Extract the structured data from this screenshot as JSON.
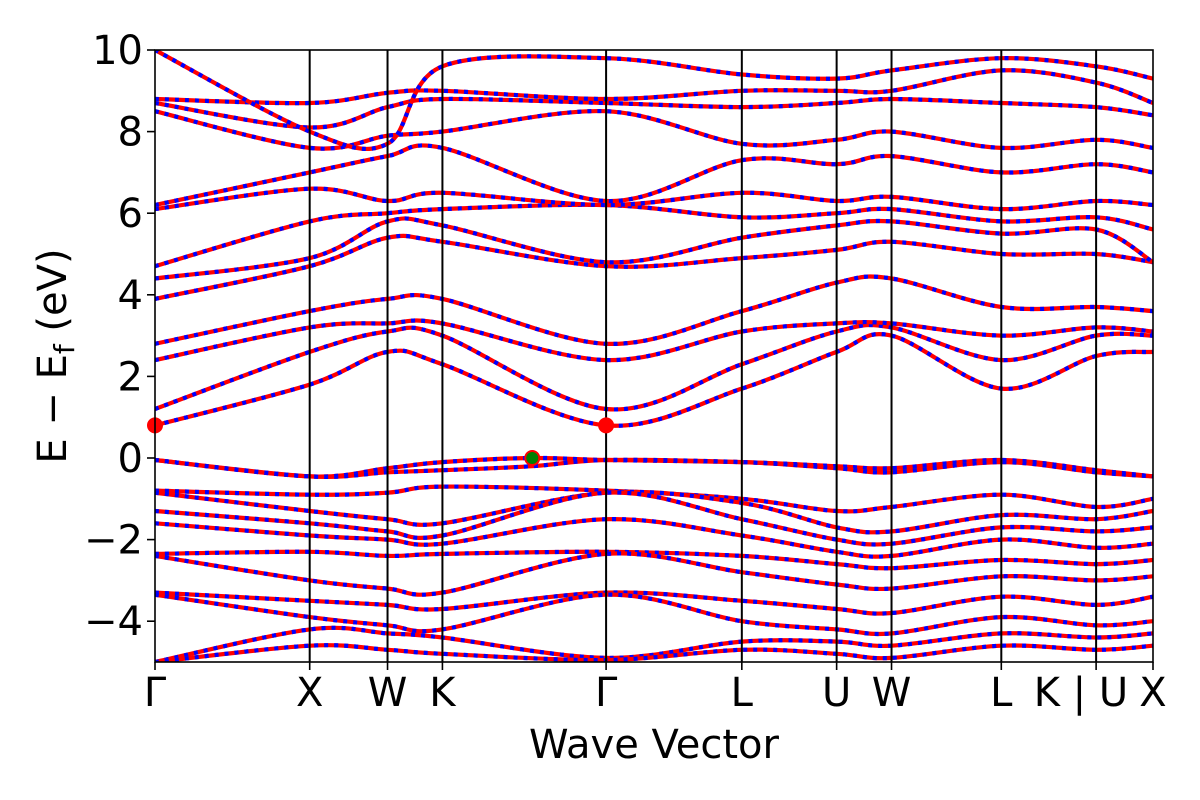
{
  "chart_data": {
    "type": "line",
    "xlabel": "Wave Vector",
    "ylabel": "E − E",
    "ylabel_sub": "f",
    "ylabel_unit": " (eV)",
    "ylim": [
      -5,
      10
    ],
    "y_ticks": [
      -4,
      -2,
      0,
      2,
      4,
      6,
      8,
      10
    ],
    "y_tick_labels": [
      "−4",
      "−2",
      "0",
      "2",
      "4",
      "6",
      "8",
      "10"
    ],
    "kpath_positions": [
      0,
      0.155,
      0.233,
      0.288,
      0.452,
      0.588,
      0.683,
      0.738,
      0.848,
      0.943,
      1.0
    ],
    "kpath_labels": [
      "Γ",
      "X",
      "W",
      "K",
      "Γ",
      "L",
      "U",
      "W",
      "L",
      "K | U",
      "X"
    ],
    "grid": false,
    "legend": "none",
    "colors": {
      "spin_up": "#ff0000",
      "spin_down": "#0000ff",
      "vbm_marker": "#008000",
      "cbm_marker": "#ff0000",
      "kpath_line": "#000000"
    },
    "markers": [
      {
        "name": "VBM",
        "x": 0.378,
        "y": 0.0
      },
      {
        "name": "CBM",
        "x": 0.452,
        "y": 0.8
      },
      {
        "name": "CBM",
        "x": 0.0,
        "y": 0.8
      }
    ],
    "series": [
      {
        "x": [
          0,
          0.155,
          0.233,
          0.288,
          0.378,
          0.452,
          0.588,
          0.683,
          0.738,
          0.848,
          0.943,
          1.0
        ],
        "y": [
          -0.05,
          -0.45,
          -0.25,
          -0.1,
          0.0,
          -0.05,
          -0.1,
          -0.2,
          -0.25,
          -0.05,
          -0.3,
          -0.45
        ]
      },
      {
        "x": [
          0,
          0.155,
          0.233,
          0.288,
          0.378,
          0.452,
          0.588,
          0.683,
          0.738,
          0.848,
          0.943,
          1.0
        ],
        "y": [
          -0.05,
          -0.45,
          -0.35,
          -0.3,
          -0.2,
          -0.05,
          -0.1,
          -0.25,
          -0.35,
          -0.1,
          -0.35,
          -0.45
        ]
      },
      {
        "x": [
          0,
          0.155,
          0.233,
          0.288,
          0.452,
          0.588,
          0.683,
          0.738,
          0.848,
          0.943,
          1.0
        ],
        "y": [
          -0.8,
          -0.9,
          -0.85,
          -0.7,
          -0.8,
          -1.0,
          -1.3,
          -1.2,
          -0.9,
          -1.2,
          -1.0
        ]
      },
      {
        "x": [
          0,
          0.155,
          0.233,
          0.288,
          0.452,
          0.588,
          0.683,
          0.738,
          0.848,
          0.943,
          1.0
        ],
        "y": [
          -0.85,
          -1.3,
          -1.5,
          -1.6,
          -0.85,
          -1.1,
          -1.7,
          -1.8,
          -1.4,
          -1.5,
          -1.3
        ]
      },
      {
        "x": [
          0,
          0.155,
          0.233,
          0.288,
          0.452,
          0.588,
          0.683,
          0.738,
          0.848,
          0.943,
          1.0
        ],
        "y": [
          -1.3,
          -1.6,
          -1.8,
          -1.9,
          -0.85,
          -1.5,
          -2.0,
          -2.1,
          -1.7,
          -1.8,
          -1.7
        ]
      },
      {
        "x": [
          0,
          0.155,
          0.233,
          0.288,
          0.452,
          0.588,
          0.683,
          0.738,
          0.848,
          0.943,
          1.0
        ],
        "y": [
          -1.6,
          -1.9,
          -2.0,
          -2.1,
          -1.5,
          -1.9,
          -2.3,
          -2.4,
          -2.0,
          -2.2,
          -2.1
        ]
      },
      {
        "x": [
          0,
          0.155,
          0.233,
          0.288,
          0.452,
          0.588,
          0.683,
          0.738,
          0.848,
          0.943,
          1.0
        ],
        "y": [
          -2.35,
          -2.3,
          -2.4,
          -2.35,
          -2.3,
          -2.4,
          -2.6,
          -2.7,
          -2.5,
          -2.6,
          -2.5
        ]
      },
      {
        "x": [
          0,
          0.155,
          0.233,
          0.288,
          0.452,
          0.588,
          0.683,
          0.738,
          0.848,
          0.943,
          1.0
        ],
        "y": [
          -2.4,
          -3.0,
          -3.2,
          -3.3,
          -2.35,
          -2.8,
          -3.1,
          -3.2,
          -2.9,
          -3.0,
          -2.9
        ]
      },
      {
        "x": [
          0,
          0.155,
          0.233,
          0.288,
          0.452,
          0.588,
          0.683,
          0.738,
          0.848,
          0.943,
          1.0
        ],
        "y": [
          -3.3,
          -3.5,
          -3.6,
          -3.7,
          -3.3,
          -3.5,
          -3.7,
          -3.8,
          -3.4,
          -3.6,
          -3.4
        ]
      },
      {
        "x": [
          0,
          0.155,
          0.233,
          0.288,
          0.452,
          0.588,
          0.683,
          0.738,
          0.848,
          0.943,
          1.0
        ],
        "y": [
          -3.35,
          -3.9,
          -4.1,
          -4.2,
          -3.35,
          -4.0,
          -4.2,
          -4.3,
          -3.9,
          -4.1,
          -4.0
        ]
      },
      {
        "x": [
          0,
          0.155,
          0.233,
          0.288,
          0.452,
          0.588,
          0.683,
          0.738,
          0.848,
          0.943,
          1.0
        ],
        "y": [
          -5.0,
          -4.2,
          -4.3,
          -4.4,
          -4.9,
          -4.5,
          -4.5,
          -4.6,
          -4.3,
          -4.4,
          -4.3
        ]
      },
      {
        "x": [
          0,
          0.155,
          0.233,
          0.288,
          0.452,
          0.588,
          0.683,
          0.738,
          0.848,
          0.943,
          1.0
        ],
        "y": [
          -5.0,
          -4.6,
          -4.7,
          -4.8,
          -4.95,
          -4.7,
          -4.8,
          -4.9,
          -4.6,
          -4.7,
          -4.6
        ]
      },
      {
        "x": [
          0,
          0.155,
          0.233,
          0.288,
          0.452,
          0.588,
          0.683,
          0.738,
          0.848,
          0.943,
          1.0
        ],
        "y": [
          0.8,
          1.8,
          2.6,
          2.3,
          0.8,
          1.7,
          2.6,
          3.0,
          1.7,
          2.5,
          2.6
        ]
      },
      {
        "x": [
          0,
          0.155,
          0.233,
          0.288,
          0.452,
          0.588,
          0.683,
          0.738,
          0.848,
          0.943,
          1.0
        ],
        "y": [
          1.2,
          2.6,
          3.1,
          3.0,
          1.2,
          2.3,
          3.1,
          3.2,
          2.4,
          3.0,
          3.0
        ]
      },
      {
        "x": [
          0,
          0.155,
          0.233,
          0.288,
          0.452,
          0.588,
          0.683,
          0.738,
          0.848,
          0.943,
          1.0
        ],
        "y": [
          2.4,
          3.2,
          3.3,
          3.3,
          2.4,
          3.1,
          3.3,
          3.3,
          3.0,
          3.2,
          3.1
        ]
      },
      {
        "x": [
          0,
          0.155,
          0.233,
          0.288,
          0.452,
          0.588,
          0.683,
          0.738,
          0.848,
          0.943,
          1.0
        ],
        "y": [
          2.8,
          3.6,
          3.9,
          3.9,
          2.8,
          3.6,
          4.3,
          4.4,
          3.7,
          3.7,
          3.6
        ]
      },
      {
        "x": [
          0,
          0.155,
          0.233,
          0.288,
          0.452,
          0.588,
          0.683,
          0.738,
          0.848,
          0.943,
          1.0
        ],
        "y": [
          3.9,
          4.7,
          5.4,
          5.3,
          4.7,
          4.9,
          5.1,
          5.3,
          5.0,
          5.0,
          4.8
        ]
      },
      {
        "x": [
          0,
          0.155,
          0.233,
          0.288,
          0.452,
          0.588,
          0.683,
          0.738,
          0.848,
          0.943,
          1.0
        ],
        "y": [
          4.4,
          4.9,
          5.8,
          5.7,
          4.8,
          5.4,
          5.7,
          5.8,
          5.5,
          5.6,
          4.8
        ]
      },
      {
        "x": [
          0,
          0.155,
          0.233,
          0.288,
          0.452,
          0.588,
          0.683,
          0.738,
          0.848,
          0.943,
          1.0
        ],
        "y": [
          4.7,
          5.8,
          6.0,
          6.1,
          6.2,
          5.9,
          6.0,
          6.1,
          5.8,
          5.9,
          5.6
        ]
      },
      {
        "x": [
          0,
          0.155,
          0.233,
          0.288,
          0.452,
          0.588,
          0.683,
          0.738,
          0.848,
          0.943,
          1.0
        ],
        "y": [
          6.1,
          6.6,
          6.3,
          6.5,
          6.2,
          6.5,
          6.3,
          6.4,
          6.1,
          6.3,
          6.2
        ]
      },
      {
        "x": [
          0,
          0.155,
          0.233,
          0.288,
          0.452,
          0.588,
          0.683,
          0.738,
          0.848,
          0.943,
          1.0
        ],
        "y": [
          6.2,
          7.0,
          7.4,
          7.6,
          6.3,
          7.3,
          7.2,
          7.4,
          7.0,
          7.2,
          7.0
        ]
      },
      {
        "x": [
          0,
          0.155,
          0.233,
          0.288,
          0.452,
          0.588,
          0.683,
          0.738,
          0.848,
          0.943,
          1.0
        ],
        "y": [
          8.5,
          7.6,
          7.9,
          8.0,
          8.5,
          7.7,
          7.8,
          8.0,
          7.6,
          7.8,
          7.6
        ]
      },
      {
        "x": [
          0,
          0.155,
          0.233,
          0.288,
          0.452,
          0.588,
          0.683,
          0.738,
          0.848,
          0.943,
          1.0
        ],
        "y": [
          8.7,
          8.1,
          8.6,
          8.8,
          8.7,
          8.6,
          8.7,
          8.8,
          8.7,
          8.6,
          8.4
        ]
      },
      {
        "x": [
          0,
          0.155,
          0.233,
          0.288,
          0.452,
          0.588,
          0.683,
          0.738,
          0.848,
          0.943,
          1.0
        ],
        "y": [
          8.8,
          8.7,
          8.95,
          9.0,
          8.8,
          9.0,
          9.0,
          9.0,
          9.5,
          9.2,
          8.7
        ]
      },
      {
        "x": [
          0,
          0.155,
          0.233,
          0.288,
          0.452,
          0.588,
          0.683,
          0.738,
          0.848,
          0.943,
          1.0
        ],
        "y": [
          10.0,
          8.0,
          7.7,
          9.6,
          9.8,
          9.4,
          9.3,
          9.5,
          9.8,
          9.6,
          9.3
        ]
      }
    ]
  }
}
